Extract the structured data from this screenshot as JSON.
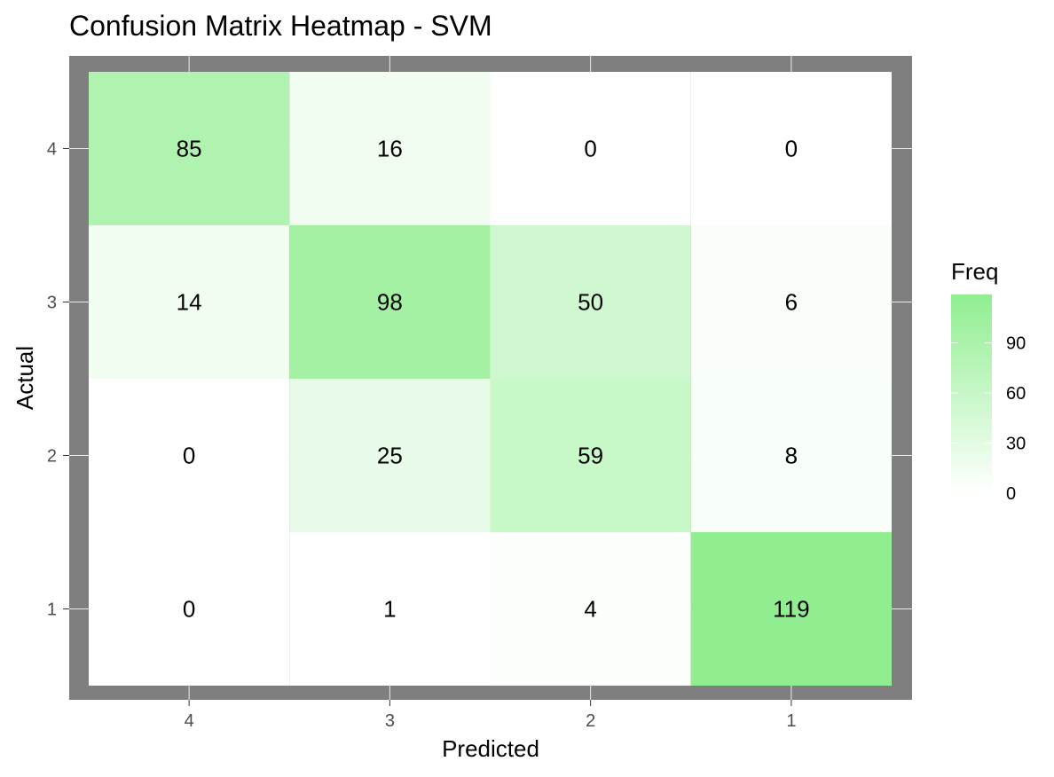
{
  "chart_data": {
    "type": "heatmap",
    "title": "Confusion Matrix Heatmap - SVM",
    "xlabel": "Predicted",
    "ylabel": "Actual",
    "x_categories": [
      "4",
      "3",
      "2",
      "1"
    ],
    "y_categories": [
      "4",
      "3",
      "2",
      "1"
    ],
    "values": [
      [
        85,
        16,
        0,
        0
      ],
      [
        14,
        98,
        50,
        6
      ],
      [
        0,
        25,
        59,
        8
      ],
      [
        0,
        1,
        4,
        119
      ]
    ],
    "color_scale": {
      "low": "#ffffff",
      "high": "#90ee90",
      "min": 0,
      "max": 119
    },
    "panel_background": "#7f7f7f",
    "legend": {
      "title": "Freq",
      "ticks": [
        0,
        30,
        60,
        90
      ],
      "position": "right"
    }
  }
}
